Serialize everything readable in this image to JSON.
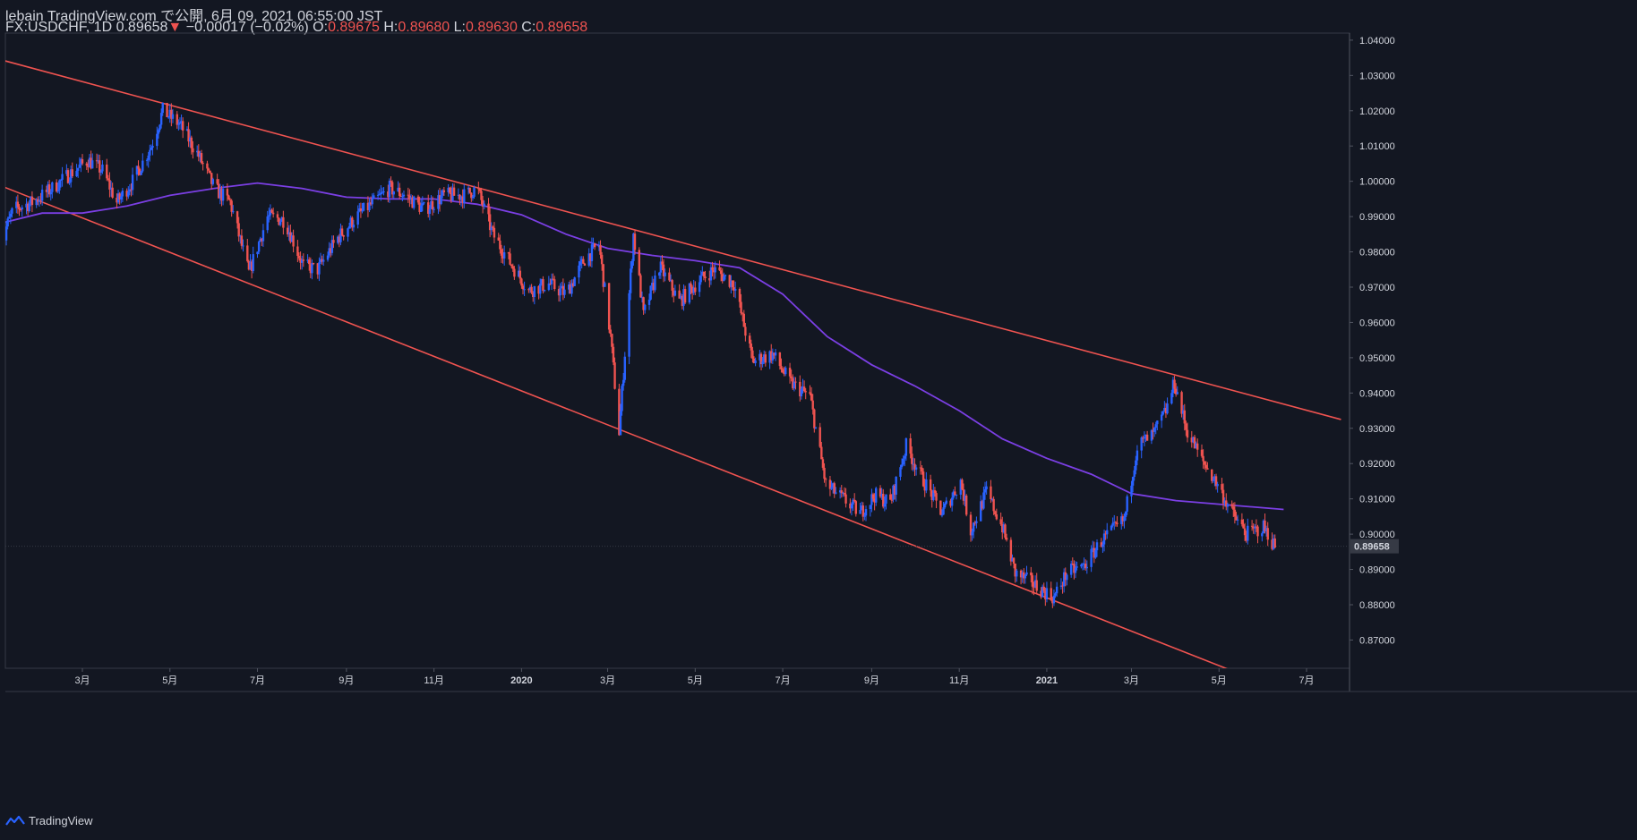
{
  "header": {
    "line1": "lebain TradingView.com で公開, 6月 09, 2021 06:55:00 JST",
    "symbol": "FX:USDCHF, 1D",
    "last": "0.89658",
    "change_arrow": "▼",
    "change": "−0.00017 (−0.02%)",
    "o_label": "O:",
    "o": "0.89675",
    "h_label": "H:",
    "h": "0.89680",
    "l_label": "L:",
    "l": "0.89630",
    "c_label": "C:",
    "c": "0.89658"
  },
  "footer": {
    "brand": "TradingView",
    "logo_icon": "tradingview-logo-icon"
  },
  "colors": {
    "up": "#2962ff",
    "down": "#ef5350",
    "ma": "#7b3fe4",
    "trendline": "#ef5350",
    "background": "#131722"
  },
  "chart_data": {
    "type": "candlestick",
    "symbol": "FX:USDCHF",
    "interval": "1D",
    "ylim": [
      0.862,
      1.042
    ],
    "y_ticks": [
      "1.04000",
      "1.03000",
      "1.02000",
      "1.01000",
      "1.00000",
      "0.99000",
      "0.98000",
      "0.97000",
      "0.96000",
      "0.95000",
      "0.94000",
      "0.93000",
      "0.92000",
      "0.91000",
      "0.90000",
      "0.89000",
      "0.88000",
      "0.87000"
    ],
    "last_price_label": "0.89658",
    "x_ticks": [
      {
        "label": "3月",
        "date": "2019-03-01"
      },
      {
        "label": "5月",
        "date": "2019-05-01"
      },
      {
        "label": "7月",
        "date": "2019-07-01"
      },
      {
        "label": "9月",
        "date": "2019-09-01"
      },
      {
        "label": "11月",
        "date": "2019-11-01"
      },
      {
        "label": "2020",
        "date": "2020-01-01",
        "bold": true
      },
      {
        "label": "3月",
        "date": "2020-03-01"
      },
      {
        "label": "5月",
        "date": "2020-05-01"
      },
      {
        "label": "7月",
        "date": "2020-07-01"
      },
      {
        "label": "9月",
        "date": "2020-09-01"
      },
      {
        "label": "11月",
        "date": "2020-11-01"
      },
      {
        "label": "2021",
        "date": "2021-01-01",
        "bold": true
      },
      {
        "label": "3月",
        "date": "2021-03-01"
      },
      {
        "label": "5月",
        "date": "2021-05-01"
      },
      {
        "label": "7月",
        "date": "2021-07-01"
      }
    ],
    "price_path": [
      [
        "2019-01-02",
        0.982
      ],
      [
        "2019-01-12",
        0.992
      ],
      [
        "2019-01-25",
        0.994
      ],
      [
        "2019-02-08",
        0.998
      ],
      [
        "2019-02-20",
        1.002
      ],
      [
        "2019-03-05",
        1.006
      ],
      [
        "2019-03-15",
        1.003
      ],
      [
        "2019-03-25",
        0.994
      ],
      [
        "2019-04-05",
        1.0
      ],
      [
        "2019-04-18",
        1.01
      ],
      [
        "2019-04-26",
        1.02
      ],
      [
        "2019-05-08",
        1.016
      ],
      [
        "2019-05-20",
        1.008
      ],
      [
        "2019-06-01",
        0.998
      ],
      [
        "2019-06-12",
        0.994
      ],
      [
        "2019-06-25",
        0.974
      ],
      [
        "2019-07-08",
        0.99
      ],
      [
        "2019-07-20",
        0.989
      ],
      [
        "2019-08-02",
        0.976
      ],
      [
        "2019-08-12",
        0.975
      ],
      [
        "2019-08-26",
        0.984
      ],
      [
        "2019-09-08",
        0.99
      ],
      [
        "2019-09-20",
        0.994
      ],
      [
        "2019-10-01",
        0.998
      ],
      [
        "2019-10-12",
        0.996
      ],
      [
        "2019-10-25",
        0.992
      ],
      [
        "2019-11-08",
        0.996
      ],
      [
        "2019-11-22",
        0.996
      ],
      [
        "2019-12-01",
        0.998
      ],
      [
        "2019-12-12",
        0.985
      ],
      [
        "2019-12-24",
        0.977
      ],
      [
        "2020-01-06",
        0.969
      ],
      [
        "2020-01-20",
        0.971
      ],
      [
        "2020-02-01",
        0.968
      ],
      [
        "2020-02-14",
        0.978
      ],
      [
        "2020-02-24",
        0.982
      ],
      [
        "2020-03-03",
        0.956
      ],
      [
        "2020-03-09",
        0.929
      ],
      [
        "2020-03-19",
        0.985
      ],
      [
        "2020-03-26",
        0.962
      ],
      [
        "2020-04-06",
        0.976
      ],
      [
        "2020-04-20",
        0.966
      ],
      [
        "2020-05-04",
        0.972
      ],
      [
        "2020-05-14",
        0.975
      ],
      [
        "2020-05-28",
        0.971
      ],
      [
        "2020-06-10",
        0.949
      ],
      [
        "2020-06-24",
        0.951
      ],
      [
        "2020-07-06",
        0.943
      ],
      [
        "2020-07-20",
        0.939
      ],
      [
        "2020-07-31",
        0.914
      ],
      [
        "2020-08-12",
        0.91
      ],
      [
        "2020-08-24",
        0.906
      ],
      [
        "2020-09-03",
        0.911
      ],
      [
        "2020-09-14",
        0.909
      ],
      [
        "2020-09-25",
        0.925
      ],
      [
        "2020-10-06",
        0.916
      ],
      [
        "2020-10-20",
        0.906
      ],
      [
        "2020-11-02",
        0.915
      ],
      [
        "2020-11-09",
        0.901
      ],
      [
        "2020-11-20",
        0.912
      ],
      [
        "2020-12-01",
        0.902
      ],
      [
        "2020-12-10",
        0.889
      ],
      [
        "2020-12-22",
        0.886
      ],
      [
        "2021-01-06",
        0.882
      ],
      [
        "2021-01-15",
        0.889
      ],
      [
        "2021-01-27",
        0.891
      ],
      [
        "2021-02-08",
        0.898
      ],
      [
        "2021-02-24",
        0.904
      ],
      [
        "2021-03-05",
        0.925
      ],
      [
        "2021-03-16",
        0.928
      ],
      [
        "2021-03-25",
        0.935
      ],
      [
        "2021-03-31",
        0.943
      ],
      [
        "2021-04-08",
        0.93
      ],
      [
        "2021-04-19",
        0.921
      ],
      [
        "2021-04-30",
        0.914
      ],
      [
        "2021-05-10",
        0.906
      ],
      [
        "2021-05-20",
        0.9
      ],
      [
        "2021-06-01",
        0.902
      ],
      [
        "2021-06-09",
        0.89658
      ]
    ],
    "moving_average": [
      [
        "2019-01-02",
        0.988
      ],
      [
        "2019-02-01",
        0.991
      ],
      [
        "2019-03-01",
        0.991
      ],
      [
        "2019-04-01",
        0.993
      ],
      [
        "2019-05-01",
        0.996
      ],
      [
        "2019-06-01",
        0.998
      ],
      [
        "2019-07-01",
        0.9995
      ],
      [
        "2019-08-01",
        0.998
      ],
      [
        "2019-09-01",
        0.9955
      ],
      [
        "2019-10-01",
        0.995
      ],
      [
        "2019-11-01",
        0.995
      ],
      [
        "2019-12-01",
        0.9935
      ],
      [
        "2020-01-01",
        0.9905
      ],
      [
        "2020-02-01",
        0.985
      ],
      [
        "2020-03-01",
        0.981
      ],
      [
        "2020-04-01",
        0.979
      ],
      [
        "2020-05-01",
        0.9775
      ],
      [
        "2020-06-01",
        0.9755
      ],
      [
        "2020-07-01",
        0.968
      ],
      [
        "2020-08-01",
        0.956
      ],
      [
        "2020-09-01",
        0.948
      ],
      [
        "2020-10-01",
        0.942
      ],
      [
        "2020-11-01",
        0.935
      ],
      [
        "2020-12-01",
        0.927
      ],
      [
        "2021-01-01",
        0.9215
      ],
      [
        "2021-02-01",
        0.917
      ],
      [
        "2021-03-01",
        0.9115
      ],
      [
        "2021-04-01",
        0.9095
      ],
      [
        "2021-05-01",
        0.9085
      ],
      [
        "2021-06-15",
        0.907
      ]
    ],
    "trendlines": [
      {
        "start": [
          "2018-12-20",
          1.036
        ],
        "end": [
          "2021-07-25",
          0.9325
        ]
      },
      {
        "start": [
          "2018-12-20",
          1.001
        ],
        "end": [
          "2021-05-15",
          0.8605
        ]
      }
    ]
  }
}
